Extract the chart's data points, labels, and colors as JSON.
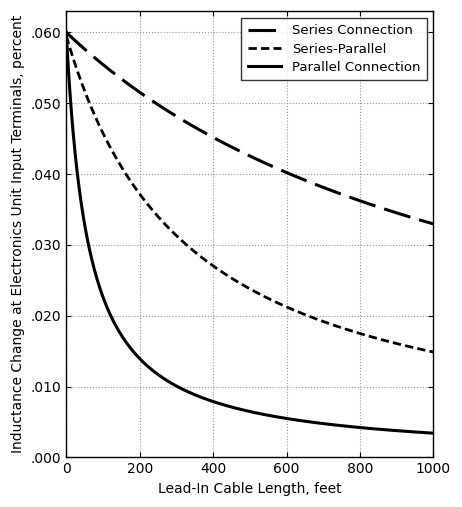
{
  "xlabel": "Lead-In Cable Length, feet",
  "ylabel": "Inductance Change at Electronics Unit Input Terminals, percent",
  "xlim": [
    0,
    1000
  ],
  "ylim": [
    0,
    0.063
  ],
  "xticks": [
    0,
    200,
    400,
    600,
    800,
    1000
  ],
  "yticks": [
    0.0,
    0.01,
    0.02,
    0.03,
    0.04,
    0.05,
    0.06
  ],
  "ytick_labels": [
    ".000",
    ".010",
    ".020",
    ".030",
    ".040",
    ".050",
    ".060"
  ],
  "series_connection": {
    "label": "Series Connection",
    "color": "#000000",
    "linewidth": 2.2,
    "a": 0.06,
    "b": 0.00082
  },
  "series_parallel": {
    "label": "Series-Parallel",
    "color": "#000000",
    "linewidth": 2.0,
    "a": 0.0595,
    "b": 0.003
  },
  "parallel_connection": {
    "label": "Parallel Connection",
    "color": "#000000",
    "linewidth": 2.2,
    "a": 0.06,
    "b": 0.0165
  },
  "grid_color": "#888888",
  "background_color": "#ffffff",
  "legend_fontsize": 9.5,
  "axis_fontsize": 10,
  "tick_fontsize": 10
}
